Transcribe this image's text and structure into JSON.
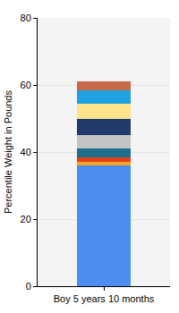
{
  "chart_data": {
    "type": "bar",
    "stacked": true,
    "y_label": "Percentile Weight in Pounds",
    "categories": [
      "Boy 5 years 10 months"
    ],
    "series": [
      {
        "color": "#4a8ff0",
        "values": [
          36
        ]
      },
      {
        "color": "#f5a623",
        "values": [
          1
        ]
      },
      {
        "color": "#e0401c",
        "values": [
          1.5
        ]
      },
      {
        "color": "#1e6e8c",
        "values": [
          2.5
        ]
      },
      {
        "color": "#c4c4c4",
        "values": [
          4
        ]
      },
      {
        "color": "#1f3a6b",
        "values": [
          5
        ]
      },
      {
        "color": "#ffe38a",
        "values": [
          4.5
        ]
      },
      {
        "color": "#1fa0e0",
        "values": [
          4
        ]
      },
      {
        "color": "#c8694a",
        "values": [
          2.5
        ]
      }
    ],
    "ylim": [
      0,
      80
    ],
    "yticks": [
      0,
      20,
      40,
      60,
      80
    ],
    "grid": true
  }
}
